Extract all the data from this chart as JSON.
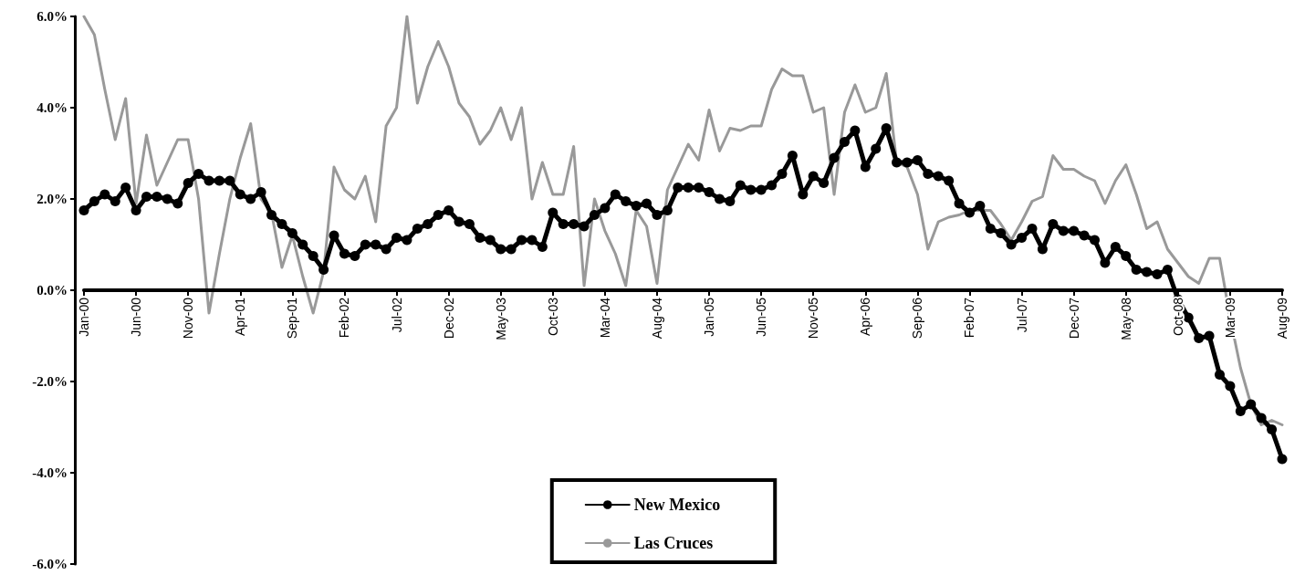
{
  "chart_data": {
    "type": "line",
    "categories": [
      "Jan-00",
      null,
      null,
      null,
      null,
      "Jun-00",
      null,
      null,
      null,
      null,
      "Nov-00",
      null,
      null,
      null,
      null,
      "Apr-01",
      null,
      null,
      null,
      null,
      "Sep-01",
      null,
      null,
      null,
      null,
      "Feb-02",
      null,
      null,
      null,
      null,
      "Jul-02",
      null,
      null,
      null,
      null,
      "Dec-02",
      null,
      null,
      null,
      null,
      "May-03",
      null,
      null,
      null,
      null,
      "Oct-03",
      null,
      null,
      null,
      null,
      "Mar-04",
      null,
      null,
      null,
      null,
      "Aug-04",
      null,
      null,
      null,
      null,
      "Jan-05",
      null,
      null,
      null,
      null,
      "Jun-05",
      null,
      null,
      null,
      null,
      "Nov-05",
      null,
      null,
      null,
      null,
      "Apr-06",
      null,
      null,
      null,
      null,
      "Sep-06",
      null,
      null,
      null,
      null,
      "Feb-07",
      null,
      null,
      null,
      null,
      "Jul-07",
      null,
      null,
      null,
      null,
      "Dec-07",
      null,
      null,
      null,
      null,
      "May-08",
      null,
      null,
      null,
      null,
      "Oct-08",
      null,
      null,
      null,
      null,
      "Mar-09",
      null,
      null,
      null,
      null,
      "Aug-09"
    ],
    "series": [
      {
        "name": "New Mexico",
        "color": "#000000",
        "marker": "circle",
        "values": [
          1.75,
          1.95,
          2.1,
          1.95,
          2.25,
          1.75,
          2.05,
          2.05,
          2.0,
          1.9,
          2.35,
          2.55,
          2.4,
          2.4,
          2.4,
          2.1,
          2.0,
          2.15,
          1.65,
          1.45,
          1.25,
          1.0,
          0.75,
          0.45,
          1.2,
          0.8,
          0.75,
          1.0,
          1.0,
          0.9,
          1.15,
          1.1,
          1.35,
          1.45,
          1.65,
          1.75,
          1.5,
          1.45,
          1.15,
          1.1,
          0.9,
          0.9,
          1.1,
          1.1,
          0.95,
          1.7,
          1.45,
          1.45,
          1.4,
          1.65,
          1.8,
          2.1,
          1.95,
          1.85,
          1.9,
          1.65,
          1.75,
          2.25,
          2.25,
          2.25,
          2.15,
          2.0,
          1.95,
          2.3,
          2.2,
          2.2,
          2.3,
          2.55,
          2.95,
          2.1,
          2.5,
          2.35,
          2.9,
          3.25,
          3.5,
          2.7,
          3.1,
          3.55,
          2.8,
          2.8,
          2.85,
          2.55,
          2.5,
          2.4,
          1.9,
          1.7,
          1.85,
          1.35,
          1.25,
          1.0,
          1.15,
          1.35,
          0.9,
          1.45,
          1.3,
          1.3,
          1.2,
          1.1,
          0.6,
          0.95,
          0.75,
          0.45,
          0.4,
          0.35,
          0.45,
          -0.2,
          -0.6,
          -1.05,
          -1.0,
          -1.85,
          -2.1,
          -2.65,
          -2.5,
          -2.8,
          -3.05,
          -3.7
        ]
      },
      {
        "name": "Las Cruces",
        "color": "#999999",
        "marker": "none",
        "values": [
          6.0,
          5.6,
          4.4,
          3.3,
          4.2,
          1.9,
          3.4,
          2.3,
          2.8,
          3.3,
          3.3,
          2.0,
          -0.5,
          0.8,
          2.0,
          2.9,
          3.65,
          2.0,
          1.7,
          0.5,
          1.2,
          0.3,
          -0.5,
          0.4,
          2.7,
          2.2,
          2.0,
          2.5,
          1.5,
          3.6,
          4.0,
          6.0,
          4.1,
          4.9,
          5.45,
          4.9,
          4.1,
          3.8,
          3.2,
          3.5,
          4.0,
          3.3,
          4.0,
          2.0,
          2.8,
          2.1,
          2.1,
          3.15,
          0.1,
          2.0,
          1.3,
          0.8,
          0.1,
          1.75,
          1.4,
          0.15,
          2.2,
          2.7,
          3.2,
          2.85,
          3.95,
          3.05,
          3.55,
          3.5,
          3.6,
          3.6,
          4.4,
          4.85,
          4.7,
          4.7,
          3.9,
          4.0,
          2.1,
          3.9,
          4.5,
          3.9,
          4.0,
          4.75,
          2.8,
          2.7,
          2.1,
          0.9,
          1.5,
          1.6,
          1.65,
          1.75,
          1.75,
          1.75,
          1.45,
          1.1,
          1.5,
          1.95,
          2.05,
          2.95,
          2.65,
          2.65,
          2.5,
          2.4,
          1.9,
          2.4,
          2.75,
          2.1,
          1.35,
          1.5,
          0.9,
          0.6,
          0.3,
          0.15,
          0.7,
          0.7,
          -0.6,
          -1.7,
          -2.5,
          -2.95,
          -2.85,
          -2.95
        ]
      }
    ],
    "ylim": [
      -6,
      6
    ],
    "yticks": [
      {
        "value": -6,
        "label": "-6.0%"
      },
      {
        "value": -4,
        "label": "-4.0%"
      },
      {
        "value": -2,
        "label": "-2.0%"
      },
      {
        "value": 0,
        "label": "0.0%"
      },
      {
        "value": 2,
        "label": "2.0%"
      },
      {
        "value": 4,
        "label": "4.0%"
      },
      {
        "value": 6,
        "label": "6.0%"
      }
    ],
    "grid": false,
    "legend": "bottom",
    "line_style": "solid"
  }
}
